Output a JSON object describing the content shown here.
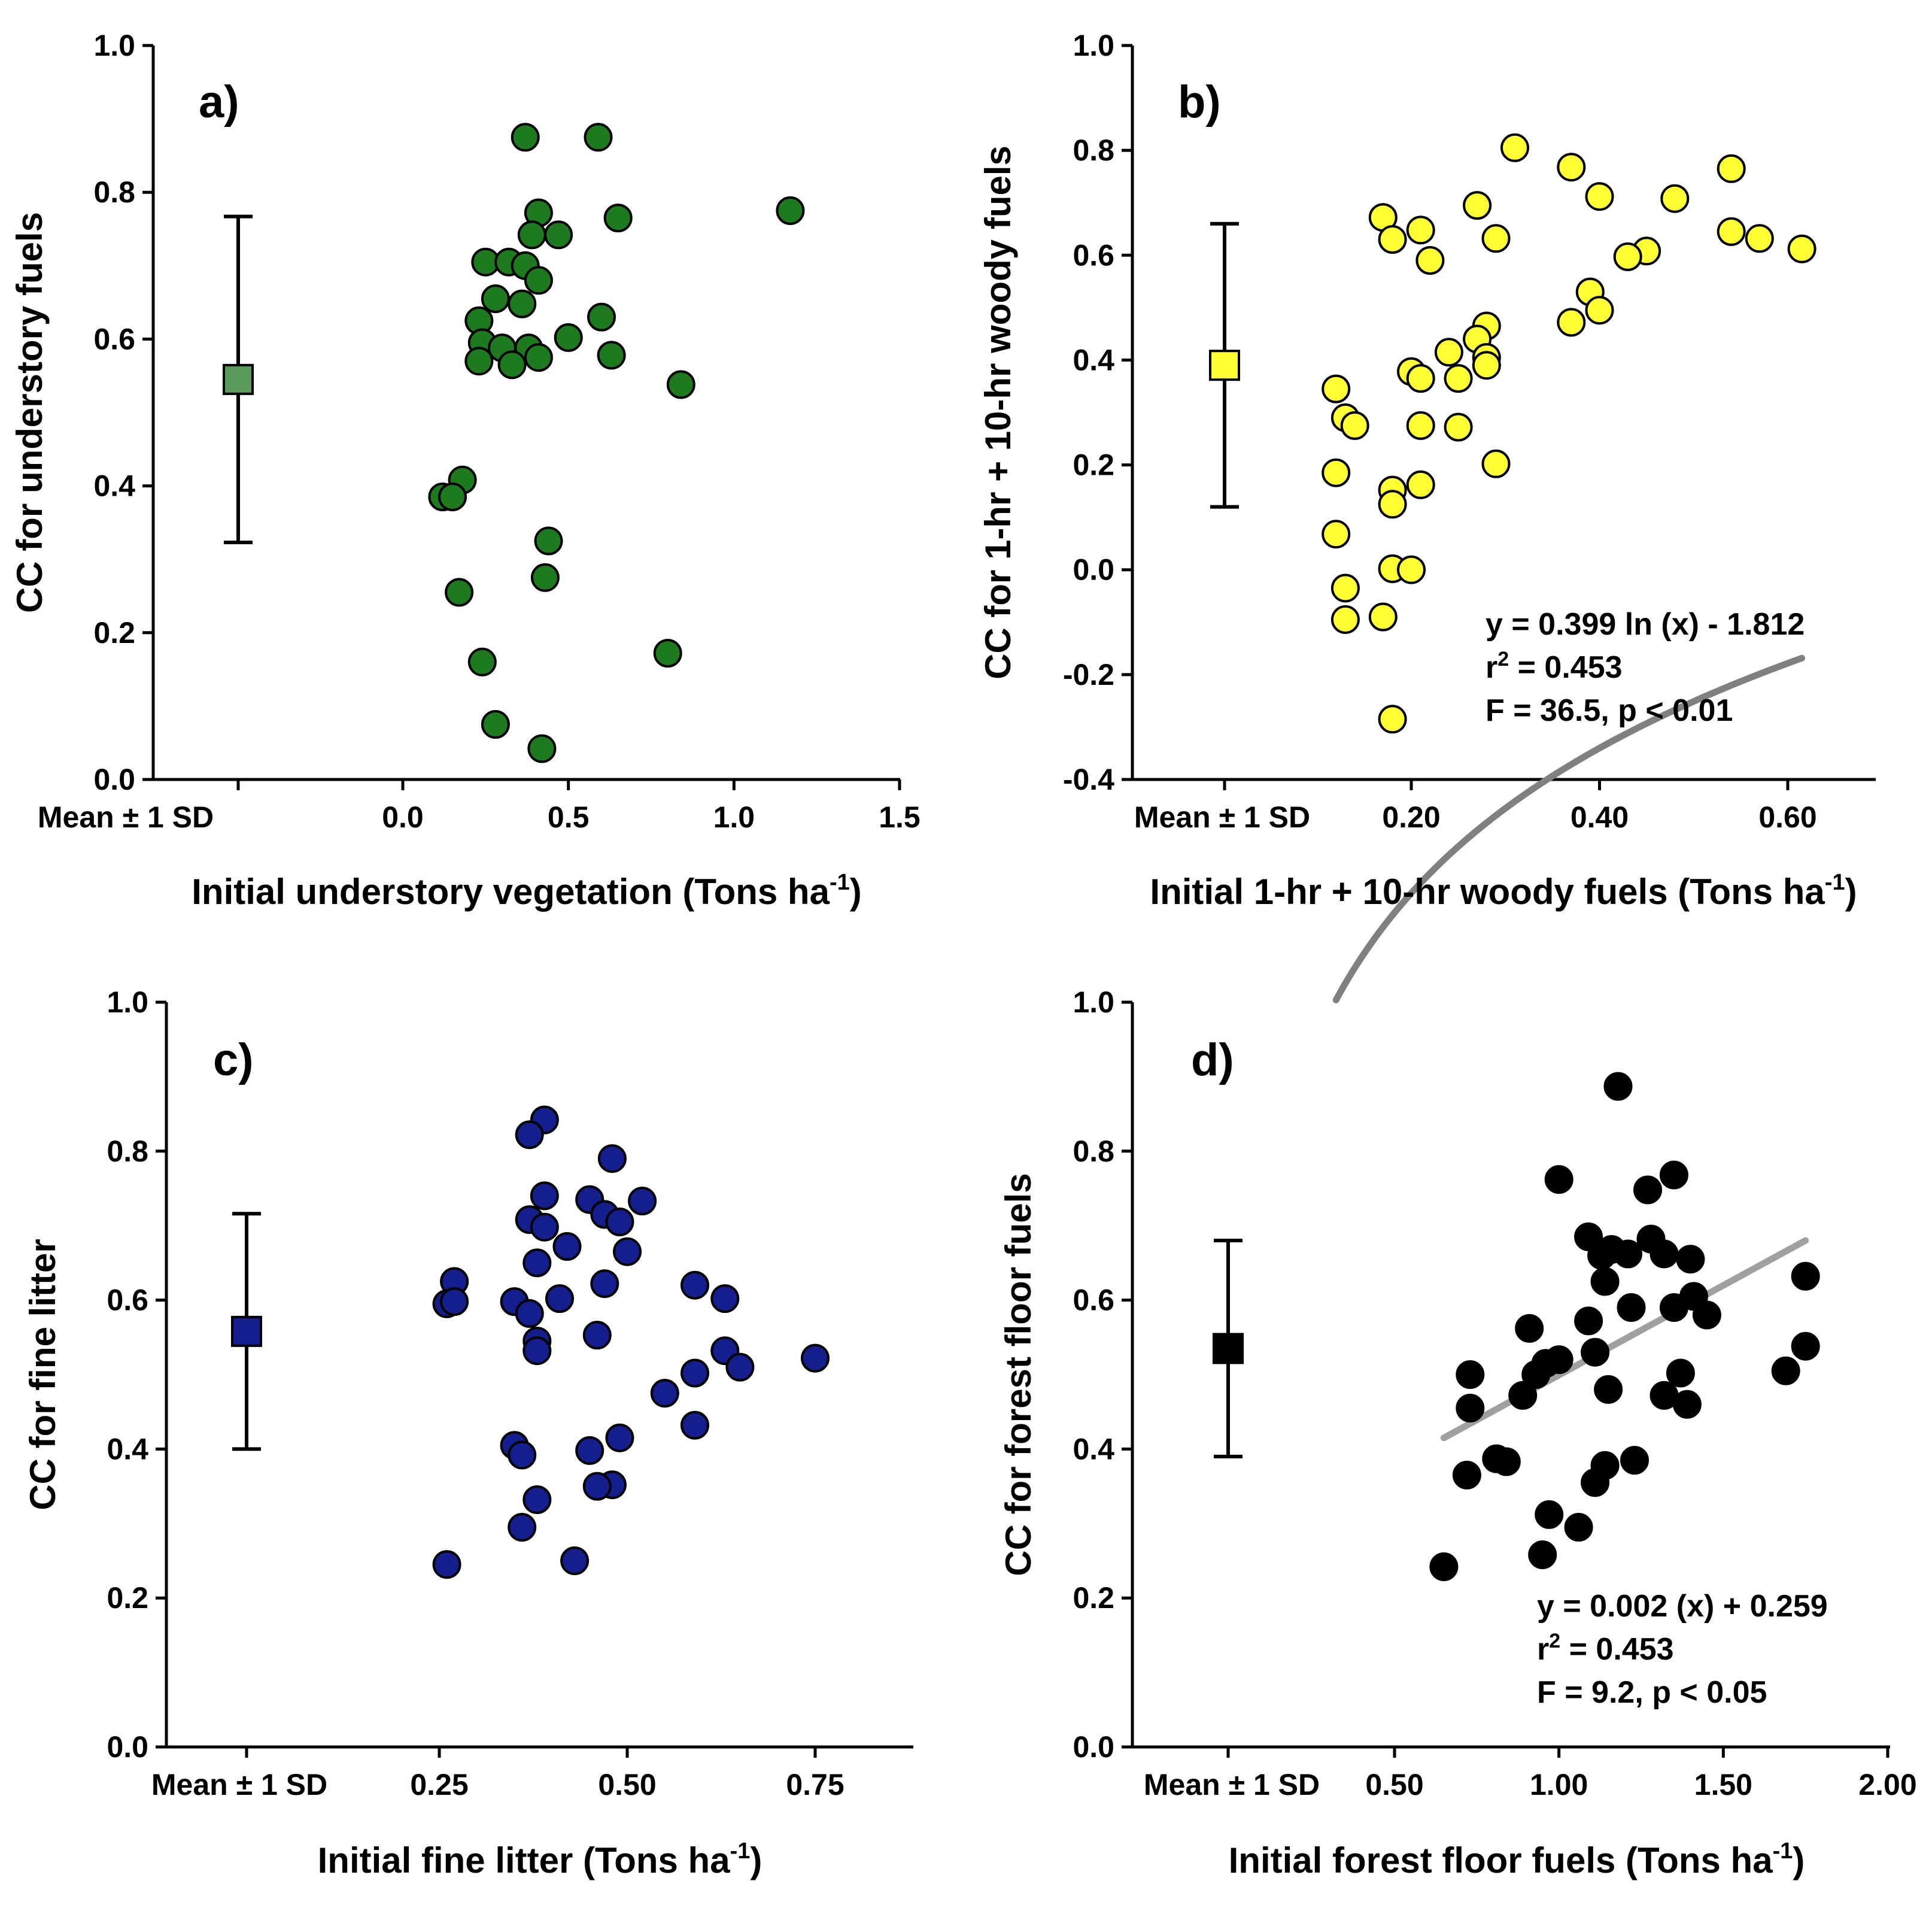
{
  "chart_data": [
    {
      "type": "scatter",
      "panel": "a)",
      "xlabel": "Initial understory vegetation (Tons ha",
      "xlabel_sup": "-1",
      "xlabel_end": ")",
      "ylabel": "CC for understory fuels",
      "xlim": [
        -0.5,
        1.5
      ],
      "ylim": [
        0.0,
        1.0
      ],
      "x_ticks": [
        "0.0",
        "0.5",
        "1.0",
        "1.5"
      ],
      "y_ticks": [
        "0.0",
        "0.2",
        "0.4",
        "0.6",
        "0.8",
        "1.0"
      ],
      "mean_label": "Mean",
      "sd_label": "1 SD",
      "mean": 0.545,
      "sd": 0.222,
      "marker_color": "#1e7a1e",
      "mean_color": "#5a9a5a",
      "points": [
        [
          0.37,
          0.875
        ],
        [
          0.59,
          0.875
        ],
        [
          1.17,
          0.775
        ],
        [
          0.41,
          0.772
        ],
        [
          0.65,
          0.765
        ],
        [
          0.47,
          0.742
        ],
        [
          0.39,
          0.742
        ],
        [
          0.25,
          0.705
        ],
        [
          0.32,
          0.705
        ],
        [
          0.37,
          0.7
        ],
        [
          0.41,
          0.68
        ],
        [
          0.28,
          0.655
        ],
        [
          0.36,
          0.648
        ],
        [
          0.23,
          0.625
        ],
        [
          0.6,
          0.63
        ],
        [
          0.5,
          0.602
        ],
        [
          0.24,
          0.595
        ],
        [
          0.3,
          0.588
        ],
        [
          0.38,
          0.588
        ],
        [
          0.41,
          0.575
        ],
        [
          0.63,
          0.578
        ],
        [
          0.23,
          0.57
        ],
        [
          0.33,
          0.565
        ],
        [
          0.84,
          0.538
        ],
        [
          0.18,
          0.408
        ],
        [
          0.12,
          0.385
        ],
        [
          0.15,
          0.385
        ],
        [
          0.44,
          0.325
        ],
        [
          0.43,
          0.275
        ],
        [
          0.17,
          0.255
        ],
        [
          0.8,
          0.172
        ],
        [
          0.24,
          0.16
        ],
        [
          0.28,
          0.075
        ],
        [
          0.42,
          0.042
        ]
      ]
    },
    {
      "type": "scatter",
      "panel": "b)",
      "xlabel": "Initial 1-hr + 10-hr woody fuels (Tons ha",
      "xlabel_sup": "-1",
      "xlabel_end": ")",
      "ylabel": "CC for 1-hr + 10-hr woody fuels",
      "xlim": [
        0.0,
        0.7
      ],
      "ylim": [
        -0.4,
        1.0
      ],
      "x_ticks": [
        "0.20",
        "0.40",
        "0.60"
      ],
      "y_ticks": [
        "-0.4",
        "-0.2",
        "0.0",
        "0.2",
        "0.4",
        "0.6",
        "0.8",
        "1.0"
      ],
      "mean_label": "Mean",
      "sd_label": "1 SD",
      "mean": 0.39,
      "sd": 0.27,
      "marker_color": "#ffff33",
      "mean_color": "#ffff33",
      "fit": {
        "model": "log",
        "a": 0.399,
        "b": -1.812,
        "x_range": [
          0.12,
          0.615
        ],
        "color": "#808080"
      },
      "equation": [
        "y = 0.399 ln (x) - 1.812",
        "r",
        "2",
        " = 0.453",
        "F = 36.5, p < 0.01"
      ],
      "points": [
        [
          0.31,
          0.805
        ],
        [
          0.37,
          0.768
        ],
        [
          0.54,
          0.765
        ],
        [
          0.4,
          0.712
        ],
        [
          0.48,
          0.708
        ],
        [
          0.27,
          0.695
        ],
        [
          0.17,
          0.672
        ],
        [
          0.21,
          0.648
        ],
        [
          0.18,
          0.63
        ],
        [
          0.54,
          0.645
        ],
        [
          0.57,
          0.632
        ],
        [
          0.29,
          0.632
        ],
        [
          0.615,
          0.612
        ],
        [
          0.45,
          0.608
        ],
        [
          0.43,
          0.597
        ],
        [
          0.22,
          0.59
        ],
        [
          0.39,
          0.53
        ],
        [
          0.4,
          0.495
        ],
        [
          0.37,
          0.472
        ],
        [
          0.28,
          0.465
        ],
        [
          0.27,
          0.44
        ],
        [
          0.24,
          0.415
        ],
        [
          0.28,
          0.405
        ],
        [
          0.28,
          0.39
        ],
        [
          0.2,
          0.378
        ],
        [
          0.21,
          0.365
        ],
        [
          0.25,
          0.365
        ],
        [
          0.12,
          0.345
        ],
        [
          0.13,
          0.29
        ],
        [
          0.14,
          0.275
        ],
        [
          0.21,
          0.275
        ],
        [
          0.25,
          0.272
        ],
        [
          0.29,
          0.202
        ],
        [
          0.12,
          0.185
        ],
        [
          0.21,
          0.162
        ],
        [
          0.18,
          0.152
        ],
        [
          0.18,
          0.125
        ],
        [
          0.12,
          0.068
        ],
        [
          0.18,
          0.002
        ],
        [
          0.2,
          0.0
        ],
        [
          0.13,
          -0.035
        ],
        [
          0.13,
          -0.095
        ],
        [
          0.17,
          -0.09
        ],
        [
          0.18,
          -0.285
        ]
      ]
    },
    {
      "type": "scatter",
      "panel": "c)",
      "xlabel": "Initial fine litter (Tons ha",
      "xlabel_sup": "-1",
      "xlabel_end": ")",
      "ylabel": "CC for fine litter",
      "xlim": [
        0.0,
        0.85
      ],
      "ylim": [
        0.0,
        1.0
      ],
      "x_ticks": [
        "0.25",
        "0.50",
        "0.75"
      ],
      "y_ticks": [
        "0.0",
        "0.2",
        "0.4",
        "0.6",
        "0.8",
        "1.0"
      ],
      "mean_label": "Mean",
      "sd_label": "1 SD",
      "mean": 0.558,
      "sd": 0.158,
      "marker_color": "#141e8c",
      "mean_color": "#141e8c",
      "points": [
        [
          0.39,
          0.842
        ],
        [
          0.37,
          0.822
        ],
        [
          0.48,
          0.79
        ],
        [
          0.39,
          0.74
        ],
        [
          0.45,
          0.735
        ],
        [
          0.52,
          0.733
        ],
        [
          0.37,
          0.708
        ],
        [
          0.39,
          0.698
        ],
        [
          0.47,
          0.715
        ],
        [
          0.49,
          0.705
        ],
        [
          0.5,
          0.665
        ],
        [
          0.42,
          0.672
        ],
        [
          0.38,
          0.65
        ],
        [
          0.27,
          0.625
        ],
        [
          0.47,
          0.622
        ],
        [
          0.59,
          0.62
        ],
        [
          0.26,
          0.595
        ],
        [
          0.27,
          0.598
        ],
        [
          0.35,
          0.598
        ],
        [
          0.41,
          0.602
        ],
        [
          0.63,
          0.602
        ],
        [
          0.37,
          0.582
        ],
        [
          0.46,
          0.553
        ],
        [
          0.38,
          0.545
        ],
        [
          0.38,
          0.532
        ],
        [
          0.63,
          0.532
        ],
        [
          0.75,
          0.522
        ],
        [
          0.59,
          0.502
        ],
        [
          0.65,
          0.51
        ],
        [
          0.55,
          0.475
        ],
        [
          0.59,
          0.432
        ],
        [
          0.49,
          0.415
        ],
        [
          0.35,
          0.405
        ],
        [
          0.36,
          0.392
        ],
        [
          0.45,
          0.398
        ],
        [
          0.48,
          0.352
        ],
        [
          0.46,
          0.35
        ],
        [
          0.38,
          0.332
        ],
        [
          0.36,
          0.295
        ],
        [
          0.43,
          0.25
        ],
        [
          0.26,
          0.245
        ]
      ]
    },
    {
      "type": "scatter",
      "panel": "d)",
      "xlabel": "Initial forest floor fuels (Tons ha",
      "xlabel_sup": "-1",
      "xlabel_end": ")",
      "ylabel": "CC for forest floor fuels",
      "xlim": [
        0.0,
        2.0
      ],
      "ylim": [
        0.0,
        1.0
      ],
      "x_ticks": [
        "0.50",
        "1.00",
        "1.50",
        "2.00"
      ],
      "y_ticks": [
        "0.0",
        "0.2",
        "0.4",
        "0.6",
        "0.8",
        "1.0"
      ],
      "mean_label": "Mean",
      "sd_label": "1 SD",
      "mean": 0.535,
      "sd": 0.145,
      "marker_color": "#000000",
      "mean_color": "#000000",
      "fit": {
        "model": "linear",
        "x_range": [
          0.65,
          1.75
        ],
        "y_range": [
          0.415,
          0.68
        ],
        "color": "#a0a0a0"
      },
      "equation": [
        "y = 0.002 (x) + 0.259",
        "r",
        "2",
        " = 0.453",
        "F = 9.2, p < 0.05"
      ],
      "points": [
        [
          1.18,
          0.887
        ],
        [
          1.0,
          0.762
        ],
        [
          1.35,
          0.768
        ],
        [
          1.27,
          0.748
        ],
        [
          1.09,
          0.685
        ],
        [
          1.16,
          0.668
        ],
        [
          1.28,
          0.682
        ],
        [
          1.13,
          0.66
        ],
        [
          1.21,
          0.662
        ],
        [
          1.32,
          0.662
        ],
        [
          1.4,
          0.655
        ],
        [
          1.14,
          0.625
        ],
        [
          1.41,
          0.605
        ],
        [
          1.22,
          0.59
        ],
        [
          1.35,
          0.59
        ],
        [
          1.45,
          0.58
        ],
        [
          1.75,
          0.632
        ],
        [
          1.09,
          0.572
        ],
        [
          0.91,
          0.562
        ],
        [
          1.11,
          0.53
        ],
        [
          1.75,
          0.538
        ],
        [
          1.0,
          0.52
        ],
        [
          0.96,
          0.515
        ],
        [
          0.93,
          0.5
        ],
        [
          0.73,
          0.5
        ],
        [
          1.69,
          0.505
        ],
        [
          1.37,
          0.502
        ],
        [
          0.89,
          0.472
        ],
        [
          1.32,
          0.472
        ],
        [
          1.15,
          0.48
        ],
        [
          1.39,
          0.46
        ],
        [
          0.73,
          0.455
        ],
        [
          0.81,
          0.387
        ],
        [
          0.84,
          0.383
        ],
        [
          1.23,
          0.385
        ],
        [
          1.14,
          0.378
        ],
        [
          1.11,
          0.355
        ],
        [
          0.72,
          0.365
        ],
        [
          0.97,
          0.312
        ],
        [
          1.06,
          0.295
        ],
        [
          0.95,
          0.258
        ],
        [
          0.65,
          0.242
        ]
      ]
    }
  ]
}
